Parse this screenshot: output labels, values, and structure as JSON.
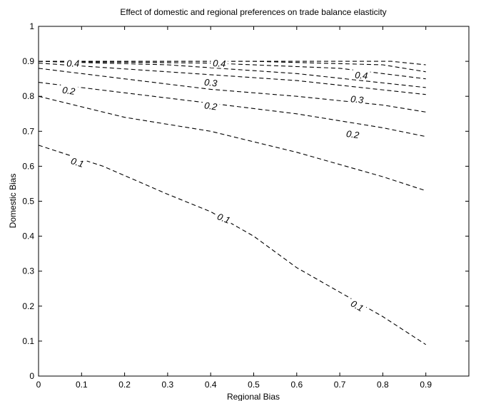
{
  "chart_data": {
    "type": "line",
    "title": "Effect of domestic and regional preferences on trade balance elasticity",
    "xlabel": "Regional Bias",
    "ylabel": "Domestic Bias",
    "xlim": [
      0,
      1
    ],
    "ylim": [
      0,
      1
    ],
    "x_ticks": [
      "0",
      "0.1",
      "0.2",
      "0.3",
      "0.4",
      "0.5",
      "0.6",
      "0.7",
      "0.8",
      "0.9"
    ],
    "y_ticks": [
      "0",
      "0.1",
      "0.2",
      "0.3",
      "0.4",
      "0.5",
      "0.6",
      "0.7",
      "0.8",
      "0.9",
      "1"
    ],
    "grid": false,
    "series": [
      {
        "level": 0.1,
        "points": [
          [
            0,
            0.66
          ],
          [
            0.15,
            0.6
          ],
          [
            0.3,
            0.52
          ],
          [
            0.4,
            0.47
          ],
          [
            0.5,
            0.4
          ],
          [
            0.6,
            0.31
          ],
          [
            0.7,
            0.24
          ],
          [
            0.8,
            0.17
          ],
          [
            0.9,
            0.09
          ]
        ]
      },
      {
        "level": 0.2,
        "points": [
          [
            0,
            0.8
          ],
          [
            0.2,
            0.74
          ],
          [
            0.4,
            0.7
          ],
          [
            0.6,
            0.64
          ],
          [
            0.8,
            0.57
          ],
          [
            0.9,
            0.53
          ]
        ]
      },
      {
        "level": 0.2,
        "points": [
          [
            0,
            0.84
          ],
          [
            0.2,
            0.81
          ],
          [
            0.4,
            0.78
          ],
          [
            0.6,
            0.75
          ],
          [
            0.8,
            0.71
          ],
          [
            0.9,
            0.685
          ]
        ]
      },
      {
        "level": 0.3,
        "points": [
          [
            0,
            0.88
          ],
          [
            0.2,
            0.85
          ],
          [
            0.4,
            0.82
          ],
          [
            0.6,
            0.8
          ],
          [
            0.8,
            0.775
          ],
          [
            0.9,
            0.755
          ]
        ]
      },
      {
        "level": 0.3,
        "points": [
          [
            0,
            0.895
          ],
          [
            0.3,
            0.87
          ],
          [
            0.6,
            0.845
          ],
          [
            0.9,
            0.805
          ]
        ]
      },
      {
        "level": 0.4,
        "points": [
          [
            0,
            0.9
          ],
          [
            0.3,
            0.89
          ],
          [
            0.6,
            0.865
          ],
          [
            0.9,
            0.825
          ]
        ]
      },
      {
        "level": 0.4,
        "points": [
          [
            0,
            0.9
          ],
          [
            0.4,
            0.895
          ],
          [
            0.7,
            0.88
          ],
          [
            0.9,
            0.85
          ]
        ]
      },
      {
        "level": 0.4,
        "points": [
          [
            0,
            0.9
          ],
          [
            0.5,
            0.9
          ],
          [
            0.8,
            0.89
          ],
          [
            0.9,
            0.87
          ]
        ]
      },
      {
        "level": 0.4,
        "points": [
          [
            0,
            0.9
          ],
          [
            0.6,
            0.9
          ],
          [
            0.82,
            0.9
          ],
          [
            0.9,
            0.89
          ]
        ]
      }
    ],
    "contour_labels": [
      {
        "text": "0.1",
        "x": 0.09,
        "y": 0.61,
        "angle": 18
      },
      {
        "text": "0.1",
        "x": 0.43,
        "y": 0.45,
        "angle": 22
      },
      {
        "text": "0.1",
        "x": 0.74,
        "y": 0.2,
        "angle": 30
      },
      {
        "text": "0.2",
        "x": 0.07,
        "y": 0.815,
        "angle": 8
      },
      {
        "text": "0.2",
        "x": 0.4,
        "y": 0.771,
        "angle": 8
      },
      {
        "text": "0.2",
        "x": 0.73,
        "y": 0.69,
        "angle": 8
      },
      {
        "text": "0.3",
        "x": 0.4,
        "y": 0.838,
        "angle": 6
      },
      {
        "text": "0.3",
        "x": 0.74,
        "y": 0.79,
        "angle": 6
      },
      {
        "text": "0.4",
        "x": 0.42,
        "y": 0.893,
        "angle": 3
      },
      {
        "text": "0.4",
        "x": 0.75,
        "y": 0.859,
        "angle": 4
      },
      {
        "text": "0.3",
        "x": 0.08,
        "y": 0.893,
        "angle": 0
      },
      {
        "text": "0.4",
        "x": 0.08,
        "y": 0.893,
        "angle": 0
      }
    ]
  }
}
